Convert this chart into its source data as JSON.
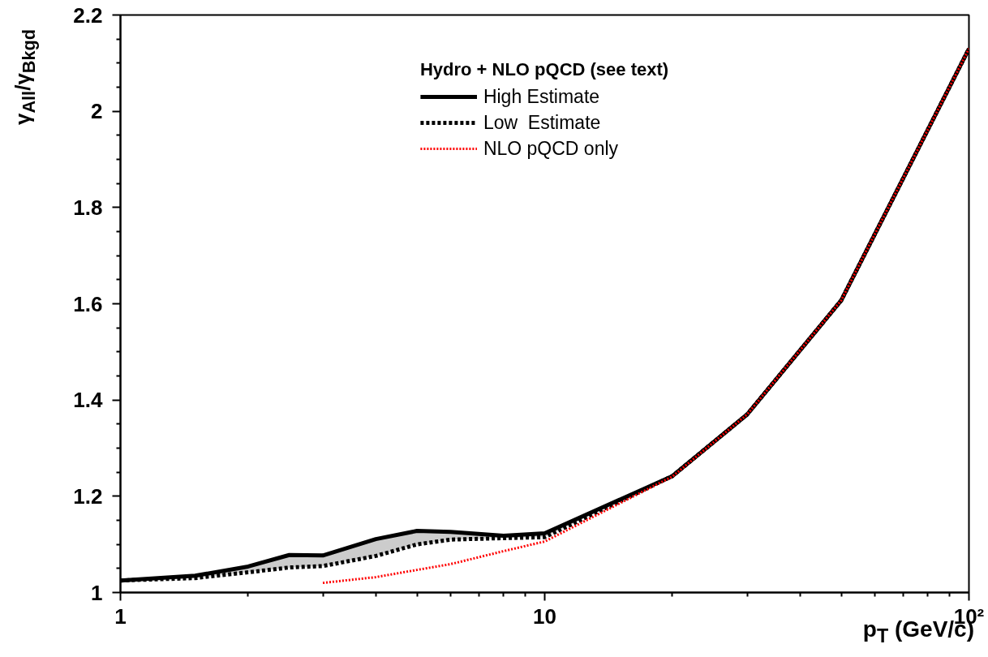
{
  "chart_data": {
    "type": "line",
    "xlabel": "p$_{T}$ (GeV/c)",
    "ylabel": "γ$_{All}$/γ$_{Bkgd}$",
    "legend_title": "Hydro + NLO pQCD (see text)",
    "log": "x",
    "xlim": [
      1,
      100
    ],
    "xticks": [
      1,
      10,
      {
        "value": 100,
        "label": "10²"
      }
    ],
    "ylim": [
      1,
      2.2
    ],
    "yticks": [
      1,
      1.2,
      1.4,
      1.6,
      1.8,
      2,
      2.2
    ],
    "grid": false,
    "legend": "top",
    "series": [
      {
        "name": "High Estimate",
        "color": "#000000",
        "line_style": "solid",
        "x": [
          1,
          1.5,
          2,
          2.5,
          3,
          4,
          5,
          6,
          8,
          10,
          20,
          30,
          50,
          100
        ],
        "values": [
          1.025,
          1.035,
          1.054,
          1.078,
          1.077,
          1.111,
          1.128,
          1.126,
          1.118,
          1.123,
          1.242,
          1.37,
          1.607,
          2.13
        ]
      },
      {
        "name": "Low  Estimate",
        "color": "#000000",
        "line_style": "dashed",
        "x": [
          1,
          1.5,
          2,
          2.5,
          3,
          4,
          5,
          6,
          8,
          10,
          20,
          30,
          50,
          100
        ],
        "values": [
          1.025,
          1.03,
          1.042,
          1.052,
          1.055,
          1.076,
          1.1,
          1.11,
          1.113,
          1.115,
          1.242,
          1.37,
          1.607,
          2.13
        ],
        "lower": [
          1.025,
          1.03,
          1.042,
          1.052,
          1.055,
          1.076,
          1.1,
          1.11,
          1.113,
          1.115,
          1.242,
          1.37,
          1.607,
          2.13
        ],
        "upper": [
          1.025,
          1.035,
          1.054,
          1.078,
          1.077,
          1.111,
          1.128,
          1.126,
          1.118,
          1.123,
          1.242,
          1.37,
          1.607,
          2.13
        ]
      },
      {
        "name": "NLO pQCD only",
        "color": "#ff0000",
        "line_style": "dotted",
        "x": [
          3,
          4,
          5,
          6,
          8,
          10,
          20,
          30,
          50,
          100
        ],
        "values": [
          1.02,
          1.032,
          1.047,
          1.059,
          1.086,
          1.106,
          1.241,
          1.37,
          1.607,
          2.13
        ]
      }
    ]
  }
}
